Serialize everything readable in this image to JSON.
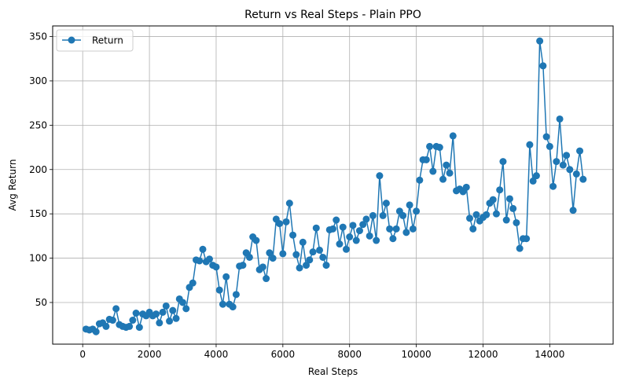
{
  "chart_data": {
    "type": "line",
    "title": "Return vs Real Steps - Plain PPO",
    "xlabel": "Real Steps",
    "ylabel": "Avg Return",
    "xlim": [
      -900,
      15900
    ],
    "ylim": [
      3,
      362
    ],
    "xticks": [
      0,
      2000,
      4000,
      6000,
      8000,
      10000,
      12000,
      14000
    ],
    "yticks": [
      50,
      100,
      150,
      200,
      250,
      300,
      350
    ],
    "grid": true,
    "legend": "top-left",
    "series": [
      {
        "name": "Return",
        "color": "#1f77b4",
        "marker": "circle",
        "x": [
          100,
          200,
          300,
          400,
          500,
          600,
          700,
          800,
          900,
          1000,
          1100,
          1200,
          1300,
          1400,
          1500,
          1600,
          1700,
          1800,
          1900,
          2000,
          2100,
          2200,
          2300,
          2400,
          2500,
          2600,
          2700,
          2800,
          2900,
          3000,
          3100,
          3200,
          3300,
          3400,
          3500,
          3600,
          3700,
          3800,
          3900,
          4000,
          4100,
          4200,
          4300,
          4400,
          4500,
          4600,
          4700,
          4800,
          4900,
          5000,
          5100,
          5200,
          5300,
          5400,
          5500,
          5600,
          5700,
          5800,
          5900,
          6000,
          6100,
          6200,
          6300,
          6400,
          6500,
          6600,
          6700,
          6800,
          6900,
          7000,
          7100,
          7200,
          7300,
          7400,
          7500,
          7600,
          7700,
          7800,
          7900,
          8000,
          8100,
          8200,
          8300,
          8400,
          8500,
          8600,
          8700,
          8800,
          8900,
          9000,
          9100,
          9200,
          9300,
          9400,
          9500,
          9600,
          9700,
          9800,
          9900,
          10000,
          10100,
          10200,
          10300,
          10400,
          10500,
          10600,
          10700,
          10800,
          10900,
          11000,
          11100,
          11200,
          11300,
          11400,
          11500,
          11600,
          11700,
          11800,
          11900,
          12000,
          12100,
          12200,
          12300,
          12400,
          12500,
          12600,
          12700,
          12800,
          12900,
          13000,
          13100,
          13200,
          13300,
          13400,
          13500,
          13600,
          13700,
          13800,
          13900,
          14000,
          14100,
          14200,
          14300,
          14400,
          14500,
          14600,
          14700,
          14800,
          14900,
          15000
        ],
        "y": [
          20,
          19,
          20,
          17,
          26,
          27,
          23,
          31,
          30,
          43,
          25,
          23,
          22,
          23,
          30,
          38,
          22,
          37,
          35,
          39,
          35,
          37,
          27,
          39,
          46,
          29,
          41,
          32,
          54,
          50,
          43,
          67,
          72,
          98,
          97,
          110,
          96,
          99,
          92,
          90,
          64,
          48,
          79,
          48,
          45,
          59,
          91,
          92,
          106,
          101,
          124,
          120,
          87,
          90,
          77,
          106,
          100,
          144,
          139,
          105,
          141,
          162,
          126,
          104,
          89,
          118,
          92,
          98,
          107,
          134,
          109,
          101,
          92,
          132,
          133,
          143,
          116,
          135,
          110,
          124,
          137,
          120,
          131,
          138,
          144,
          125,
          148,
          120,
          193,
          148,
          162,
          133,
          122,
          133,
          153,
          148,
          129,
          160,
          133,
          153,
          188,
          211,
          211,
          226,
          198,
          226,
          225,
          189,
          205,
          196,
          238,
          176,
          178,
          175,
          180,
          145,
          133,
          149,
          142,
          146,
          149,
          162,
          166,
          150,
          177,
          209,
          143,
          167,
          156,
          140,
          111,
          122,
          122,
          228,
          187,
          193,
          345,
          317,
          237,
          226,
          181,
          209,
          257,
          205,
          216,
          200,
          154,
          195,
          221,
          189
        ]
      }
    ]
  }
}
